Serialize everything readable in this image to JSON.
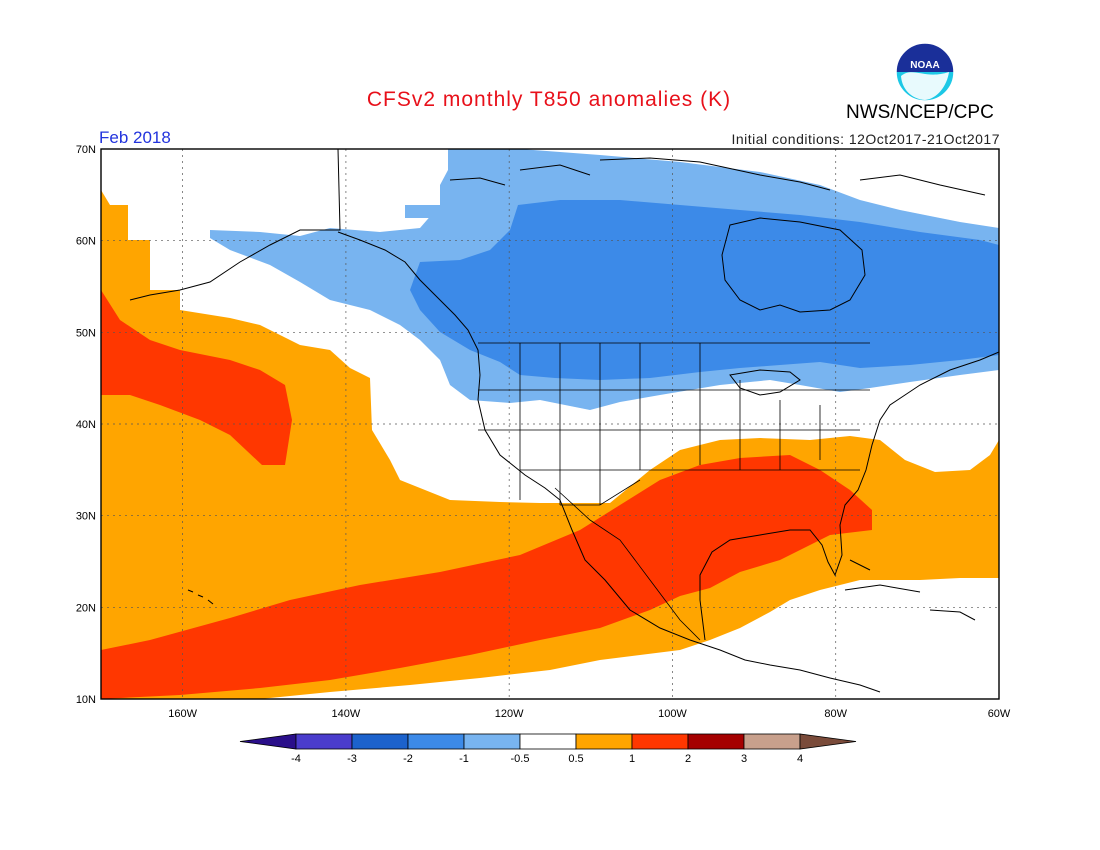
{
  "header": {
    "title": "CFSv2 monthly T850 anomalies (K)",
    "organization": "NWS/NCEP/CPC",
    "logo_text": "NOAA",
    "period": "Feb 2018",
    "initial_conditions": "Initial conditions: 12Oct2017-21Oct2017"
  },
  "map": {
    "lon_range": [
      -170,
      -60
    ],
    "lat_range": [
      10,
      70
    ],
    "lat_labels": [
      "10N",
      "20N",
      "30N",
      "40N",
      "50N",
      "60N",
      "70N"
    ],
    "lon_labels": [
      "160W",
      "140W",
      "120W",
      "100W",
      "80W",
      "60W"
    ],
    "gridlines": true
  },
  "colorbar": {
    "labels": [
      "-4",
      "-3",
      "-2",
      "-1",
      "-0.5",
      "0.5",
      "1",
      "2",
      "3",
      "4"
    ],
    "colors": [
      "#2a0f8a",
      "#4a3ccc",
      "#1c62cc",
      "#3c8ae8",
      "#78b4f0",
      "#ffffff",
      "#ffa500",
      "#ff3700",
      "#a50000",
      "#c8a08c",
      "#7a4b3a"
    ]
  },
  "colors": {
    "title": "#e8101a",
    "period": "#2233dd",
    "anom_cold_1": "#78b4f0",
    "anom_cold_2": "#3c8ae8",
    "anom_warm_1": "#ffa500",
    "anom_warm_2": "#ff3700"
  }
}
